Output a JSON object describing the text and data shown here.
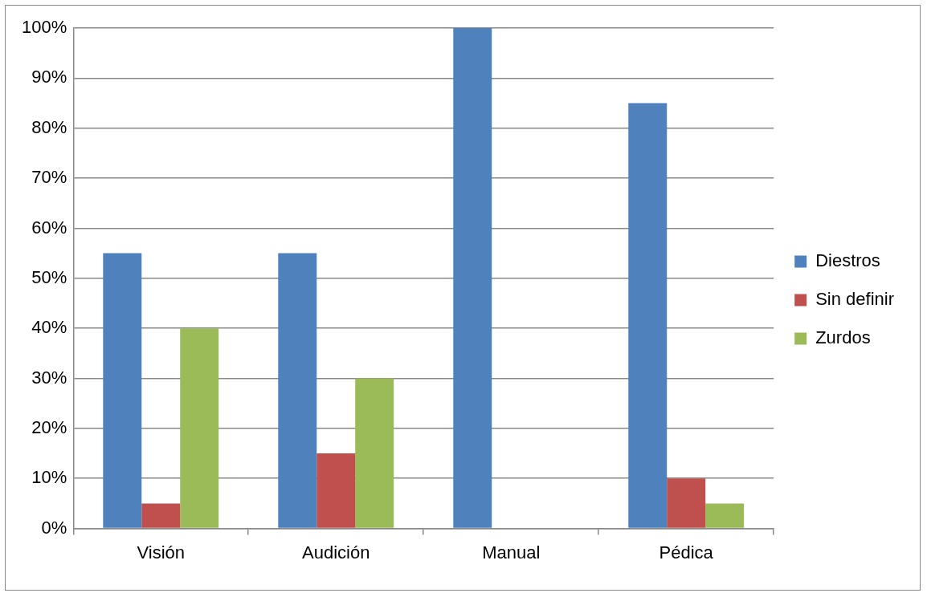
{
  "chart_data": {
    "type": "bar",
    "categories": [
      "Visión",
      "Audición",
      "Manual",
      "Pédica"
    ],
    "series": [
      {
        "name": "Diestros",
        "color": "#4f81bd",
        "values": [
          55,
          55,
          100,
          85
        ]
      },
      {
        "name": "Sin definir",
        "color": "#c0504d",
        "values": [
          5,
          15,
          0,
          10
        ]
      },
      {
        "name": "Zurdos",
        "color": "#9bbb59",
        "values": [
          40,
          30,
          0,
          5
        ]
      }
    ],
    "ylim": [
      0,
      100
    ],
    "yticks": [
      {
        "value": 0,
        "label": "0%"
      },
      {
        "value": 10,
        "label": "10%"
      },
      {
        "value": 20,
        "label": "20%"
      },
      {
        "value": 30,
        "label": "30%"
      },
      {
        "value": 40,
        "label": "40%"
      },
      {
        "value": 50,
        "label": "50%"
      },
      {
        "value": 60,
        "label": "60%"
      },
      {
        "value": 70,
        "label": "70%"
      },
      {
        "value": 80,
        "label": "80%"
      },
      {
        "value": 90,
        "label": "90%"
      },
      {
        "value": 100,
        "label": "100%"
      }
    ],
    "grid": "y",
    "legend": "right"
  }
}
